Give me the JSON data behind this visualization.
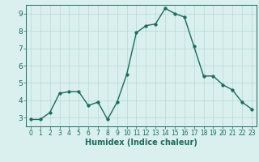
{
  "x": [
    0,
    1,
    2,
    3,
    4,
    5,
    6,
    7,
    8,
    9,
    10,
    11,
    12,
    13,
    14,
    15,
    16,
    17,
    18,
    19,
    20,
    21,
    22,
    23
  ],
  "y": [
    2.9,
    2.9,
    3.3,
    4.4,
    4.5,
    4.5,
    3.7,
    3.9,
    2.9,
    3.9,
    5.5,
    7.9,
    8.3,
    8.4,
    9.3,
    9.0,
    8.8,
    7.1,
    5.4,
    5.4,
    4.9,
    4.6,
    3.9,
    3.5
  ],
  "xlabel": "Humidex (Indice chaleur)",
  "xlim": [
    -0.5,
    23.5
  ],
  "ylim": [
    2.5,
    9.5
  ],
  "yticks": [
    3,
    4,
    5,
    6,
    7,
    8,
    9
  ],
  "xticks": [
    0,
    1,
    2,
    3,
    4,
    5,
    6,
    7,
    8,
    9,
    10,
    11,
    12,
    13,
    14,
    15,
    16,
    17,
    18,
    19,
    20,
    21,
    22,
    23
  ],
  "line_color": "#1a6b5e",
  "marker_size": 2.5,
  "line_width": 1.0,
  "bg_color": "#d9f0ee",
  "grid_color": "#b8d8d4",
  "axis_color": "#1a6b5e",
  "label_color": "#1a6b5e"
}
